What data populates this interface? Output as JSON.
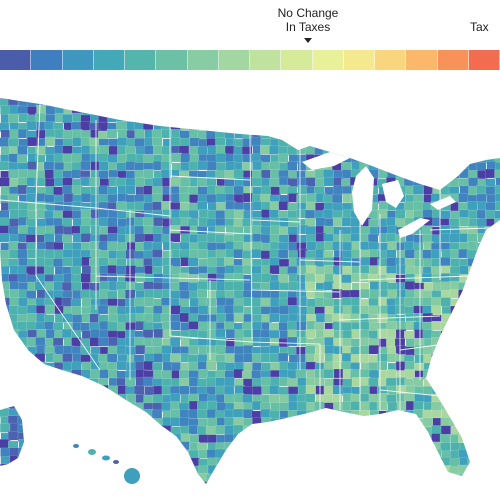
{
  "legend": {
    "center_label_line1": "No Change",
    "center_label_line2": "In Taxes",
    "right_label": "Tax",
    "swatches": [
      "#4b5cab",
      "#3f7fc0",
      "#3f97c0",
      "#43a9b8",
      "#54b5ad",
      "#6cc0a6",
      "#88cca4",
      "#a3d7a2",
      "#bfe29e",
      "#d6eb9a",
      "#e8f09a",
      "#f5e98f",
      "#f9d57e",
      "#fbb76a",
      "#f99259",
      "#f26d4f"
    ]
  },
  "map": {
    "land_palette": [
      "#4b3fa6",
      "#4a62b0",
      "#3f83bf",
      "#3ea0bc",
      "#4db2ae",
      "#67bfa5",
      "#86cba2",
      "#a8d79f"
    ],
    "water_color": "#ffffff",
    "border_color": "#ffffff"
  }
}
